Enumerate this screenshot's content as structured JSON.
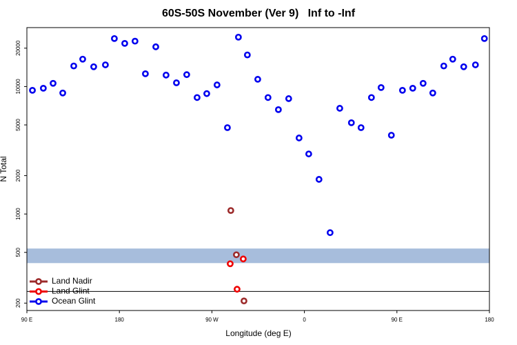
{
  "chart_data": {
    "type": "scatter",
    "title": "60S-50S November (Ver 9)   Inf to -Inf",
    "xlabel": "Longitude (deg E)",
    "ylabel": "N Total",
    "ylog": true,
    "xlim": [
      90,
      540
    ],
    "ylim": [
      175,
      29000
    ],
    "xticks": [
      {
        "value": 90,
        "label": "90 E"
      },
      {
        "value": 180,
        "label": "180"
      },
      {
        "value": 270,
        "label": "90 W"
      },
      {
        "value": 360,
        "label": "0"
      },
      {
        "value": 450,
        "label": "90 E"
      },
      {
        "value": 540,
        "label": "180"
      }
    ],
    "yticks": [
      200,
      500,
      1000,
      2000,
      5000,
      10000,
      20000
    ],
    "band": {
      "range": [
        412,
        536
      ],
      "color": "#a7bddc"
    },
    "hline": 247,
    "legend": "bottom-left",
    "series": [
      {
        "name": "Land Nadir",
        "color": "#9c2a2a",
        "x": [
          288.4,
          293.8,
          301.2
        ],
        "values": [
          1065,
          479,
          208
        ]
      },
      {
        "name": "Land Glint",
        "color": "#ee0000",
        "x": [
          287.8,
          300.5,
          294.5
        ],
        "values": [
          407,
          444,
          257
        ]
      },
      {
        "name": "Ocean Glint",
        "color": "#0000ee",
        "x": [
          95.4,
          106,
          115.5,
          124.9,
          135.6,
          144.3,
          155,
          166.4,
          175.1,
          185.2,
          195.2,
          205.3,
          215.4,
          225.4,
          235.5,
          245.5,
          255.6,
          265,
          275,
          285.1,
          295.8,
          304.5,
          314.6,
          324.6,
          334.7,
          344.7,
          354.8,
          364.2,
          374.2,
          385,
          394.4,
          405.7,
          415.1,
          425.2,
          434.6,
          444.6,
          455.4,
          465.4,
          475.5,
          484.9,
          495.6,
          504.3,
          515,
          526.4,
          535.1
        ],
        "values": [
          9340,
          9700,
          10600,
          8900,
          14500,
          16400,
          14300,
          14800,
          23800,
          21800,
          22700,
          12600,
          20500,
          12300,
          10700,
          12400,
          8200,
          8800,
          10300,
          4760,
          24400,
          17700,
          11400,
          8200,
          6590,
          8040,
          3950,
          2960,
          1870,
          714,
          6750,
          5200,
          4760,
          8200,
          9820,
          4150,
          9340,
          9700,
          10600,
          8900,
          14500,
          16400,
          14300,
          14800,
          23800
        ]
      }
    ]
  }
}
